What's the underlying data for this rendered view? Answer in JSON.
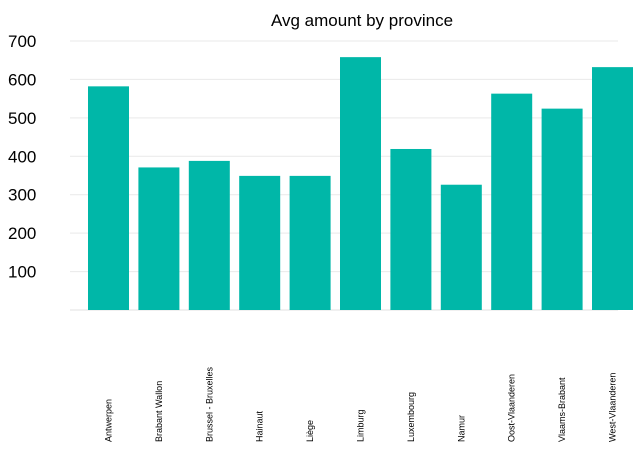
{
  "chart_data": {
    "type": "bar",
    "title": "Avg amount by province",
    "xlabel": "",
    "ylabel": "",
    "categories": [
      "Antwerpen",
      "Brabant Wallon",
      "Brussel - Bruxelles",
      "Hainaut",
      "Liège",
      "Limburg",
      "Luxembourg",
      "Namur",
      "Oost-Vlaanderen",
      "Vlaams-Brabant",
      "West-Vlaanderen"
    ],
    "values": [
      582,
      371,
      388,
      349,
      349,
      658,
      419,
      326,
      563,
      524,
      632
    ],
    "yticks": [
      100,
      200,
      300,
      400,
      500,
      600,
      700
    ],
    "ylim": [
      0,
      700
    ],
    "grid": true,
    "bar_color": "#00b7a8"
  }
}
